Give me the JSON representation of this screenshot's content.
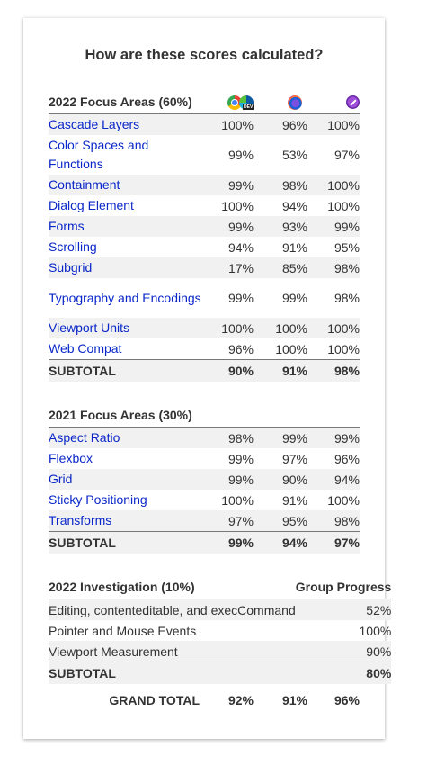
{
  "title": "How are these scores calculated?",
  "browsers": [
    "chrome-edge-dev-icon",
    "firefox-nightly-icon",
    "safari-tp-icon"
  ],
  "focus2022": {
    "header": "2022 Focus Areas (60%)",
    "rows": [
      {
        "name": "Cascade Layers",
        "a": "100%",
        "b": "96%",
        "c": "100%"
      },
      {
        "name": "Color Spaces and Functions",
        "a": "99%",
        "b": "53%",
        "c": "97%"
      },
      {
        "name": "Containment",
        "a": "99%",
        "b": "98%",
        "c": "100%"
      },
      {
        "name": "Dialog Element",
        "a": "100%",
        "b": "94%",
        "c": "100%"
      },
      {
        "name": "Forms",
        "a": "99%",
        "b": "93%",
        "c": "99%"
      },
      {
        "name": "Scrolling",
        "a": "94%",
        "b": "91%",
        "c": "95%"
      },
      {
        "name": "Subgrid",
        "a": "17%",
        "b": "85%",
        "c": "98%"
      },
      {
        "name": "Typography and Encodings",
        "a": "99%",
        "b": "99%",
        "c": "98%"
      },
      {
        "name": "Viewport Units",
        "a": "100%",
        "b": "100%",
        "c": "100%"
      },
      {
        "name": "Web Compat",
        "a": "96%",
        "b": "100%",
        "c": "100%"
      }
    ],
    "subtotal": {
      "label": "SUBTOTAL",
      "a": "90%",
      "b": "91%",
      "c": "98%"
    }
  },
  "focus2021": {
    "header": "2021 Focus Areas (30%)",
    "rows": [
      {
        "name": "Aspect Ratio",
        "a": "98%",
        "b": "99%",
        "c": "99%"
      },
      {
        "name": "Flexbox",
        "a": "99%",
        "b": "97%",
        "c": "96%"
      },
      {
        "name": "Grid",
        "a": "99%",
        "b": "90%",
        "c": "94%"
      },
      {
        "name": "Sticky Positioning",
        "a": "100%",
        "b": "91%",
        "c": "100%"
      },
      {
        "name": "Transforms",
        "a": "97%",
        "b": "95%",
        "c": "98%"
      }
    ],
    "subtotal": {
      "label": "SUBTOTAL",
      "a": "99%",
      "b": "94%",
      "c": "97%"
    }
  },
  "investigation": {
    "header": "2022 Investigation (10%)",
    "progress_header": "Group Progress",
    "rows": [
      {
        "name": "Editing, contenteditable, and execCommand",
        "value": "52%"
      },
      {
        "name": "Pointer and Mouse Events",
        "value": "100%"
      },
      {
        "name": "Viewport Measurement",
        "value": "90%"
      }
    ],
    "subtotal": {
      "label": "SUBTOTAL",
      "value": "80%"
    }
  },
  "grand": {
    "label": "GRAND TOTAL",
    "a": "92%",
    "b": "91%",
    "c": "96%"
  }
}
